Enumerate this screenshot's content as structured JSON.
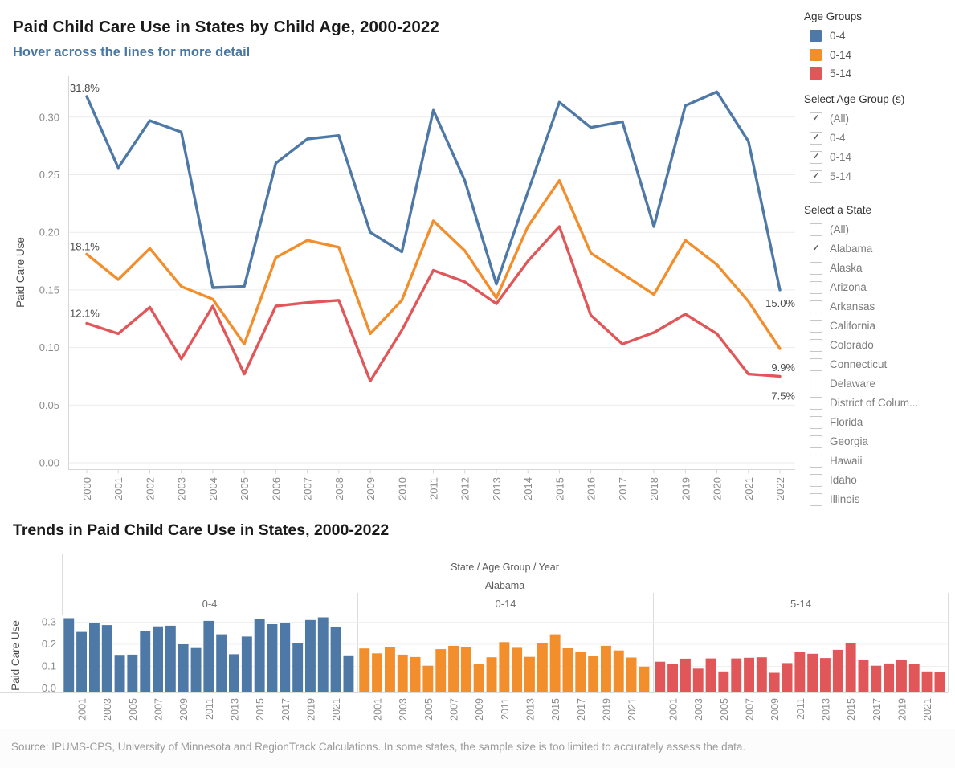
{
  "header": {
    "title": "Paid Child Care Use in States by Child Age, 2000-2022",
    "subtitle": "Hover across the lines for more detail"
  },
  "legend": {
    "title": "Age Groups",
    "items": [
      {
        "label": "0-4",
        "color": "#4e79a7"
      },
      {
        "label": "0-14",
        "color": "#f28e2b"
      },
      {
        "label": "5-14",
        "color": "#e15759"
      }
    ]
  },
  "filters": {
    "age_group": {
      "title": "Select Age Group (s)",
      "options": [
        {
          "label": "(All)",
          "checked": true
        },
        {
          "label": "0-4",
          "checked": true
        },
        {
          "label": "0-14",
          "checked": true
        },
        {
          "label": "5-14",
          "checked": true
        }
      ]
    },
    "state": {
      "title": "Select a State",
      "options": [
        {
          "label": "(All)",
          "checked": false
        },
        {
          "label": "Alabama",
          "checked": true
        },
        {
          "label": "Alaska",
          "checked": false
        },
        {
          "label": "Arizona",
          "checked": false
        },
        {
          "label": "Arkansas",
          "checked": false
        },
        {
          "label": "California",
          "checked": false
        },
        {
          "label": "Colorado",
          "checked": false
        },
        {
          "label": "Connecticut",
          "checked": false
        },
        {
          "label": "Delaware",
          "checked": false
        },
        {
          "label": "District of Colum...",
          "checked": false
        },
        {
          "label": "Florida",
          "checked": false
        },
        {
          "label": "Georgia",
          "checked": false
        },
        {
          "label": "Hawaii",
          "checked": false
        },
        {
          "label": "Idaho",
          "checked": false
        },
        {
          "label": "Illinois",
          "checked": false
        }
      ]
    }
  },
  "bottom": {
    "title": "Trends in Paid Child Care Use in States, 2000-2022"
  },
  "footer": {
    "source": "Source: IPUMS-CPS, University of Minnesota and RegionTrack Calculations.  In some states, the sample size is too limited to accurately assess the data."
  },
  "colors": {
    "blue": "#4e79a7",
    "orange": "#f28e2b",
    "red": "#e15759"
  },
  "chart_data": [
    {
      "type": "line",
      "title": "Paid Child Care Use in States by Child Age, 2000-2022",
      "subtitle": "Hover across the lines for more detail",
      "ylabel": "Paid Care Use",
      "xlabel": "",
      "grid": true,
      "legend_position": "right",
      "ylim": [
        0,
        0.33
      ],
      "yticks": [
        "0.00",
        "0.05",
        "0.10",
        "0.15",
        "0.20",
        "0.25",
        "0.30"
      ],
      "x": [
        2000,
        2001,
        2002,
        2003,
        2004,
        2005,
        2006,
        2007,
        2008,
        2009,
        2010,
        2011,
        2012,
        2013,
        2014,
        2015,
        2016,
        2017,
        2018,
        2019,
        2020,
        2021,
        2022
      ],
      "series": [
        {
          "name": "0-4",
          "color": "#4e79a7",
          "values": [
            0.318,
            0.256,
            0.297,
            0.287,
            0.152,
            0.153,
            0.26,
            0.281,
            0.284,
            0.2,
            0.183,
            0.306,
            0.245,
            0.155,
            0.235,
            0.313,
            0.291,
            0.296,
            0.205,
            0.31,
            0.322,
            0.279,
            0.15
          ]
        },
        {
          "name": "0-14",
          "color": "#f28e2b",
          "values": [
            0.181,
            0.159,
            0.186,
            0.153,
            0.142,
            0.103,
            0.178,
            0.193,
            0.187,
            0.112,
            0.141,
            0.21,
            0.184,
            0.143,
            0.205,
            0.245,
            0.182,
            0.164,
            0.146,
            0.193,
            0.172,
            0.14,
            0.099
          ]
        },
        {
          "name": "5-14",
          "color": "#e15759",
          "values": [
            0.121,
            0.112,
            0.135,
            0.09,
            0.136,
            0.077,
            0.136,
            0.139,
            0.141,
            0.071,
            0.115,
            0.167,
            0.157,
            0.138,
            0.175,
            0.205,
            0.128,
            0.103,
            0.113,
            0.129,
            0.112,
            0.077,
            0.075
          ]
        }
      ],
      "annotations": {
        "start": [
          "31.8%",
          "18.1%",
          "12.1%"
        ],
        "end": [
          "15.0%",
          "9.9%",
          "7.5%"
        ]
      }
    },
    {
      "type": "bar",
      "title": "Trends in Paid Child Care Use in States, 2000-2022",
      "facet_header": "State / Age Group / Year",
      "group": "Alabama",
      "panels": [
        "0-4",
        "0-14",
        "5-14"
      ],
      "ylabel": "Paid Care Use",
      "yticks": [
        "0.3",
        "0.2",
        "0.1",
        "0.0"
      ],
      "ylim": [
        0,
        0.35
      ],
      "x": [
        2000,
        2001,
        2002,
        2003,
        2004,
        2005,
        2006,
        2007,
        2008,
        2009,
        2010,
        2011,
        2012,
        2013,
        2014,
        2015,
        2016,
        2017,
        2018,
        2019,
        2020,
        2021,
        2022
      ],
      "shown_xticks": [
        2001,
        2003,
        2005,
        2007,
        2009,
        2011,
        2013,
        2015,
        2017,
        2019,
        2021
      ],
      "series": [
        {
          "name": "0-4",
          "color": "#4e79a7",
          "values": [
            0.318,
            0.256,
            0.297,
            0.287,
            0.152,
            0.153,
            0.26,
            0.281,
            0.284,
            0.2,
            0.183,
            0.306,
            0.245,
            0.155,
            0.235,
            0.313,
            0.291,
            0.296,
            0.205,
            0.31,
            0.322,
            0.279,
            0.15
          ]
        },
        {
          "name": "0-14",
          "color": "#f28e2b",
          "values": [
            0.181,
            0.159,
            0.186,
            0.153,
            0.142,
            0.103,
            0.178,
            0.193,
            0.187,
            0.112,
            0.141,
            0.21,
            0.184,
            0.143,
            0.205,
            0.245,
            0.182,
            0.164,
            0.146,
            0.193,
            0.172,
            0.14,
            0.099
          ]
        },
        {
          "name": "5-14",
          "color": "#e15759",
          "values": [
            0.121,
            0.112,
            0.135,
            0.09,
            0.136,
            0.077,
            0.136,
            0.139,
            0.141,
            0.071,
            0.115,
            0.167,
            0.157,
            0.138,
            0.175,
            0.205,
            0.128,
            0.103,
            0.113,
            0.129,
            0.112,
            0.077,
            0.075
          ]
        }
      ]
    }
  ]
}
